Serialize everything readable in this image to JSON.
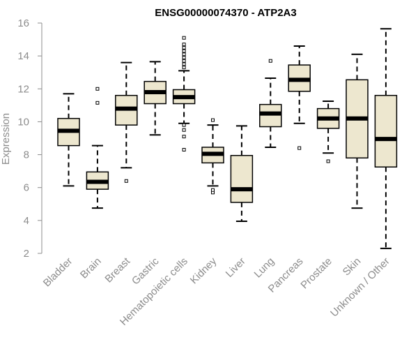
{
  "chart_data": {
    "type": "boxplot",
    "title": "ENSG00000074370 - ATP2A3",
    "xlabel": "",
    "ylabel": "Expression",
    "ylim": [
      2,
      16
    ],
    "yticks": [
      2,
      4,
      6,
      8,
      10,
      12,
      14,
      16
    ],
    "box_color": "#ede7cf",
    "categories": [
      "Bladder",
      "Brain",
      "Breast",
      "Gastric",
      "Hematopoietic cells",
      "Kidney",
      "Liver",
      "Lung",
      "Pancreas",
      "Prostate",
      "Skin",
      "Unknown / Other"
    ],
    "boxes": [
      {
        "name": "Bladder",
        "whisker_low": 6.1,
        "q1": 8.55,
        "median": 9.45,
        "q3": 10.2,
        "whisker_high": 11.7,
        "outliers": []
      },
      {
        "name": "Brain",
        "whisker_low": 4.75,
        "q1": 5.9,
        "median": 6.35,
        "q3": 6.95,
        "whisker_high": 8.55,
        "outliers": [
          11.15,
          12.0
        ]
      },
      {
        "name": "Breast",
        "whisker_low": 7.2,
        "q1": 9.8,
        "median": 10.8,
        "q3": 11.6,
        "whisker_high": 13.6,
        "outliers": [
          6.4
        ]
      },
      {
        "name": "Gastric",
        "whisker_low": 9.2,
        "q1": 11.1,
        "median": 11.8,
        "q3": 12.45,
        "whisker_high": 13.65,
        "outliers": []
      },
      {
        "name": "Hematopoietic cells",
        "whisker_low": 9.9,
        "q1": 11.1,
        "median": 11.5,
        "q3": 11.95,
        "whisker_high": 13.1,
        "outliers": [
          8.3,
          9.1,
          9.5,
          9.8,
          13.3,
          13.5,
          13.7,
          13.9,
          14.1,
          14.3,
          14.5,
          14.7,
          15.1
        ]
      },
      {
        "name": "Kidney",
        "whisker_low": 6.1,
        "q1": 7.5,
        "median": 8.05,
        "q3": 8.45,
        "whisker_high": 9.8,
        "outliers": [
          5.7,
          5.85,
          10.1
        ]
      },
      {
        "name": "Liver",
        "whisker_low": 3.95,
        "q1": 5.1,
        "median": 5.9,
        "q3": 7.95,
        "whisker_high": 9.75,
        "outliers": []
      },
      {
        "name": "Lung",
        "whisker_low": 8.45,
        "q1": 9.7,
        "median": 10.5,
        "q3": 11.05,
        "whisker_high": 12.65,
        "outliers": [
          13.7
        ]
      },
      {
        "name": "Pancreas",
        "whisker_low": 9.9,
        "q1": 11.85,
        "median": 12.55,
        "q3": 13.45,
        "whisker_high": 14.6,
        "outliers": [
          8.4
        ]
      },
      {
        "name": "Prostate",
        "whisker_low": 8.1,
        "q1": 9.6,
        "median": 10.2,
        "q3": 10.8,
        "whisker_high": 11.25,
        "outliers": [
          7.6
        ]
      },
      {
        "name": "Skin",
        "whisker_low": 4.75,
        "q1": 7.8,
        "median": 10.2,
        "q3": 12.55,
        "whisker_high": 14.1,
        "outliers": []
      },
      {
        "name": "Unknown / Other",
        "whisker_low": 2.3,
        "q1": 7.25,
        "median": 8.95,
        "q3": 11.6,
        "whisker_high": 15.65,
        "outliers": []
      }
    ]
  }
}
